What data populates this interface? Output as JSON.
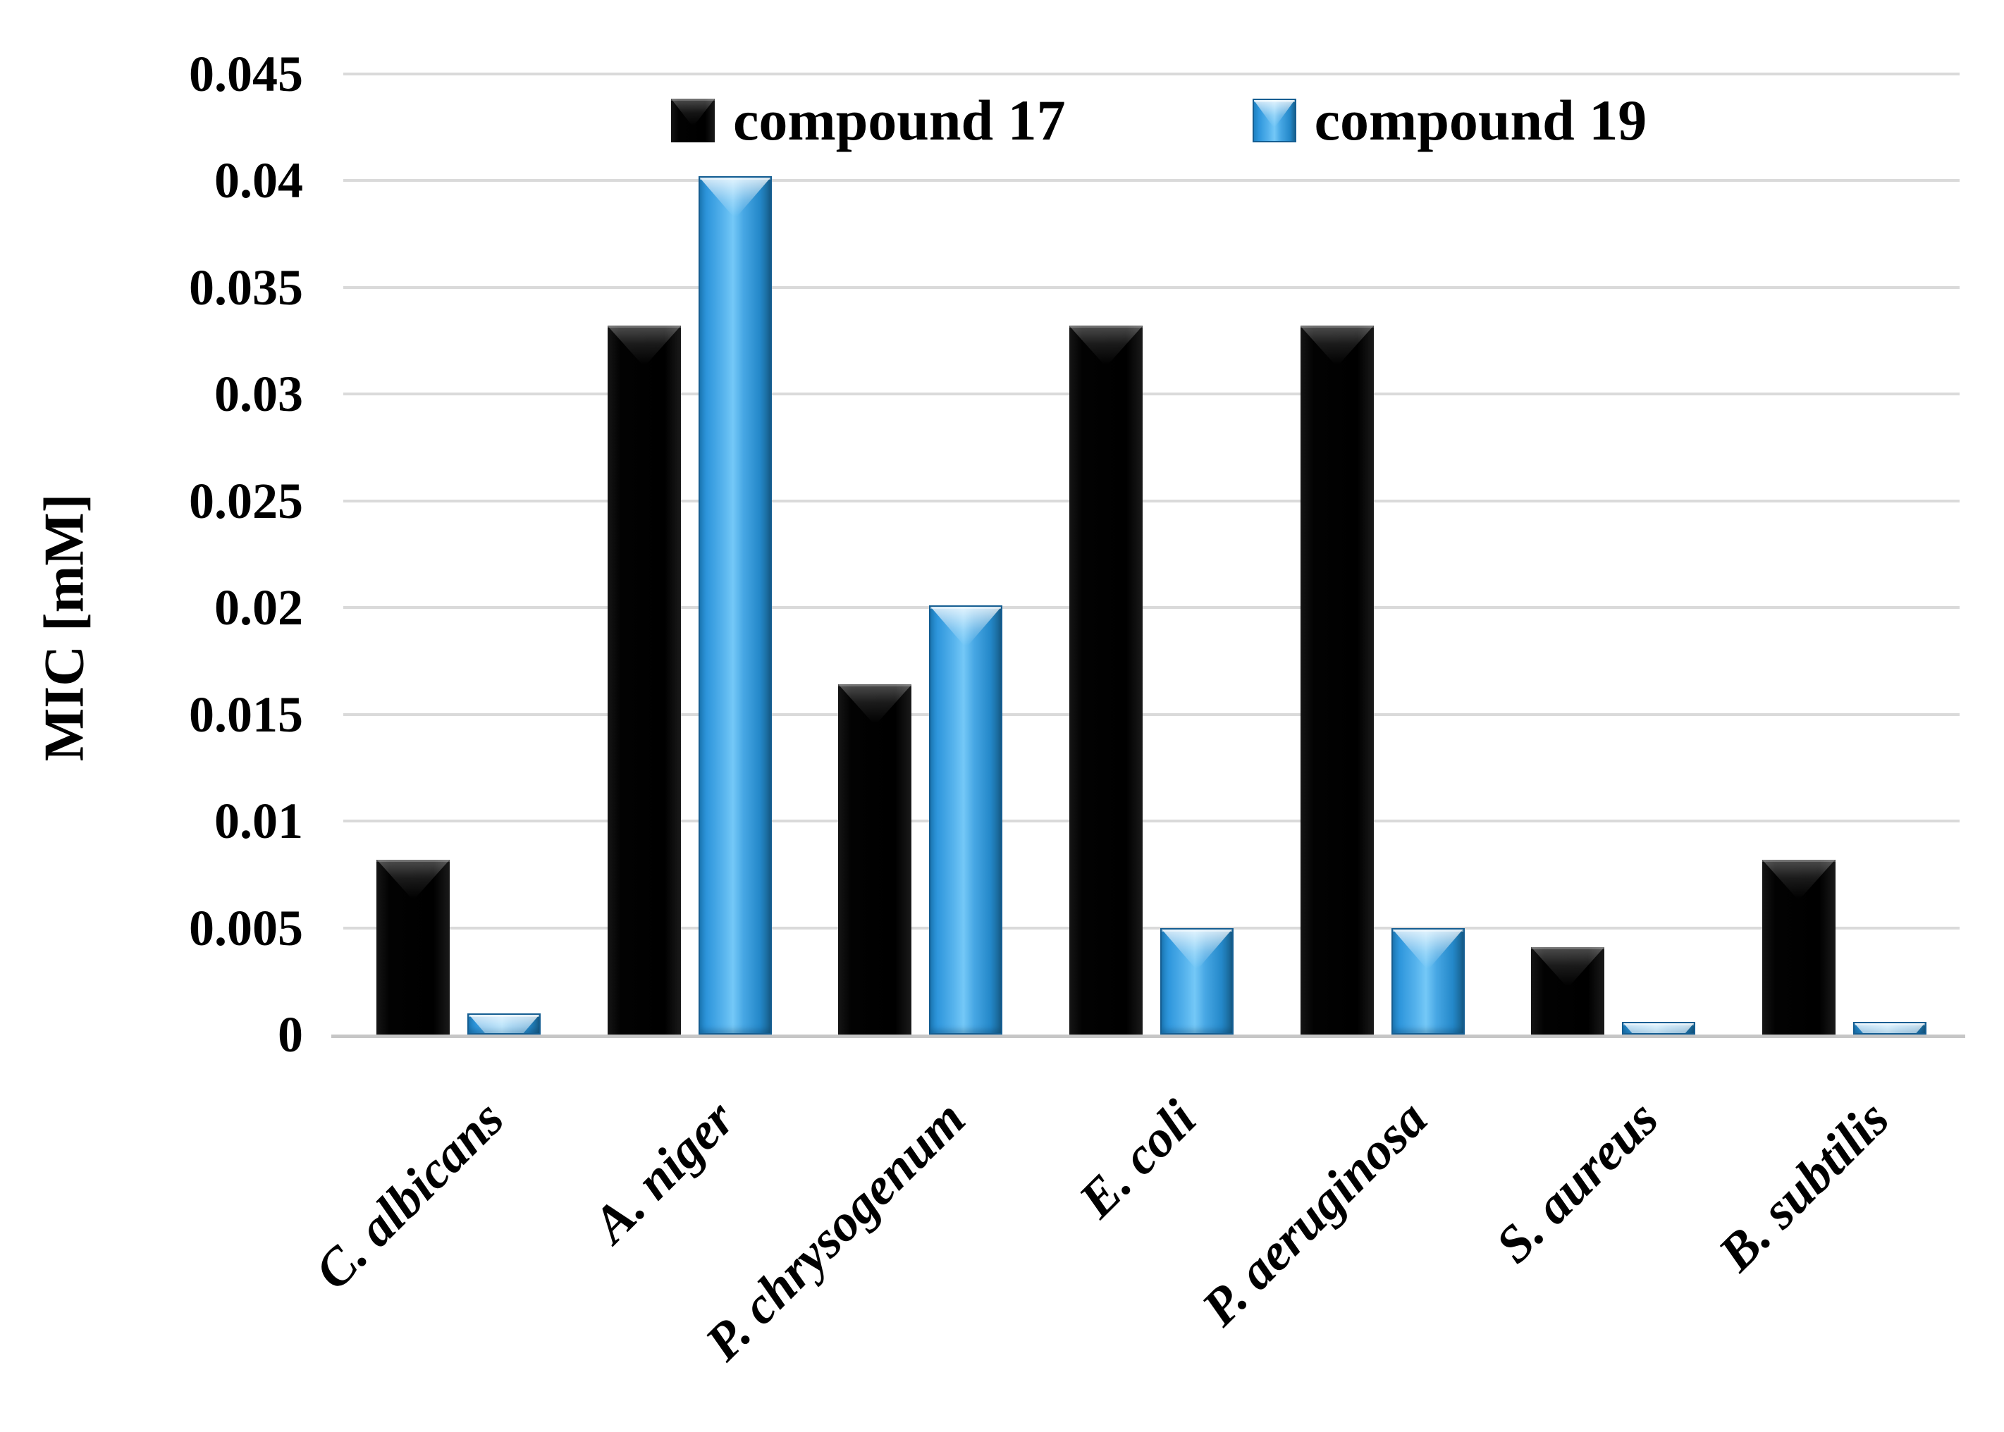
{
  "chart_data": {
    "type": "bar",
    "title": "",
    "xlabel": "",
    "ylabel": "MIC [mM]",
    "ylim": [
      0,
      0.045
    ],
    "y_tick_step": 0.005,
    "y_tick_labels": [
      "0",
      "0.005",
      "0.01",
      "0.015",
      "0.02",
      "0.025",
      "0.03",
      "0.035",
      "0.04",
      "0.045"
    ],
    "categories": [
      "C. albicans",
      "A. niger",
      "P. chrysogenum",
      "E. coli",
      "P. aeruginosa",
      "S. aureus",
      "B. subtilis"
    ],
    "series": [
      {
        "name": "compound 17",
        "color": "#0a0a0a",
        "values": [
          0.0082,
          0.0332,
          0.0164,
          0.0332,
          0.0332,
          0.0041,
          0.0082
        ]
      },
      {
        "name": "compound 19",
        "color": "#2e96dc",
        "values": [
          0.001,
          0.0402,
          0.0201,
          0.005,
          0.005,
          0.0006,
          0.0006
        ]
      }
    ],
    "legend_position": "top-center",
    "grid": true,
    "gridline_color": "#dadada",
    "axis_line_color": "#c6c6c6",
    "category_label_style": "bold-italic-rotated-45",
    "background": "#ffffff"
  }
}
